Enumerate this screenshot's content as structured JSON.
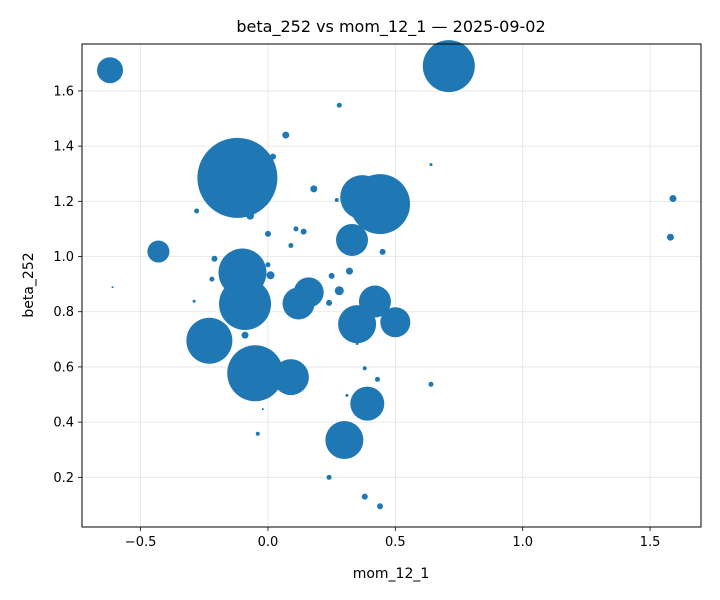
{
  "chart_data": {
    "type": "scatter",
    "title": "beta_252 vs mom_12_1 — 2025-09-02",
    "xlabel": "mom_12_1",
    "ylabel": "beta_252",
    "xlim": [
      -0.73,
      1.7
    ],
    "ylim": [
      0.02,
      1.77
    ],
    "xticks": [
      -0.5,
      0.0,
      0.5,
      1.0,
      1.5
    ],
    "xtick_labels": [
      "−0.5",
      "0.0",
      "0.5",
      "1.0",
      "1.5"
    ],
    "yticks": [
      0.2,
      0.4,
      0.6,
      0.8,
      1.0,
      1.2,
      1.4,
      1.6
    ],
    "ytick_labels": [
      "0.2",
      "0.4",
      "0.6",
      "0.8",
      "1.0",
      "1.2",
      "1.4",
      "1.6"
    ],
    "grid": true,
    "color": "#1f77b4",
    "point_size_encoding": "relative bubble radius",
    "points": [
      {
        "x": -0.62,
        "y": 1.675,
        "size": 13
      },
      {
        "x": 0.71,
        "y": 1.69,
        "size": 26
      },
      {
        "x": 0.28,
        "y": 1.548,
        "size": 2.5
      },
      {
        "x": 0.07,
        "y": 1.44,
        "size": 3.5
      },
      {
        "x": 0.02,
        "y": 1.362,
        "size": 3
      },
      {
        "x": -0.24,
        "y": 1.332,
        "size": 4.5
      },
      {
        "x": -0.12,
        "y": 1.285,
        "size": 40
      },
      {
        "x": 0.37,
        "y": 1.215,
        "size": 22
      },
      {
        "x": 0.44,
        "y": 1.19,
        "size": 30
      },
      {
        "x": 0.18,
        "y": 1.245,
        "size": 3.5
      },
      {
        "x": 0.27,
        "y": 1.205,
        "size": 2
      },
      {
        "x": 0.64,
        "y": 1.333,
        "size": 1.5
      },
      {
        "x": -0.28,
        "y": 1.165,
        "size": 2.5
      },
      {
        "x": -0.07,
        "y": 1.148,
        "size": 4
      },
      {
        "x": 0.11,
        "y": 1.1,
        "size": 2.5
      },
      {
        "x": 0.14,
        "y": 1.09,
        "size": 3
      },
      {
        "x": 0.0,
        "y": 1.082,
        "size": 3
      },
      {
        "x": 0.09,
        "y": 1.04,
        "size": 2.5
      },
      {
        "x": 0.33,
        "y": 1.06,
        "size": 16
      },
      {
        "x": 0.45,
        "y": 1.017,
        "size": 3
      },
      {
        "x": -0.43,
        "y": 1.018,
        "size": 11
      },
      {
        "x": -0.21,
        "y": 0.992,
        "size": 3
      },
      {
        "x": -0.1,
        "y": 0.942,
        "size": 24
      },
      {
        "x": 0.0,
        "y": 0.97,
        "size": 2.5
      },
      {
        "x": 0.01,
        "y": 0.932,
        "size": 4
      },
      {
        "x": -0.22,
        "y": 0.918,
        "size": 2.5
      },
      {
        "x": 0.32,
        "y": 0.947,
        "size": 3.5
      },
      {
        "x": 0.25,
        "y": 0.93,
        "size": 3
      },
      {
        "x": 0.16,
        "y": 0.87,
        "size": 15
      },
      {
        "x": 0.28,
        "y": 0.876,
        "size": 4.5
      },
      {
        "x": -0.61,
        "y": 0.889,
        "size": 1
      },
      {
        "x": -0.29,
        "y": 0.838,
        "size": 1.5
      },
      {
        "x": -0.09,
        "y": 0.828,
        "size": 26
      },
      {
        "x": 0.12,
        "y": 0.83,
        "size": 16
      },
      {
        "x": 0.24,
        "y": 0.832,
        "size": 3
      },
      {
        "x": 0.42,
        "y": 0.837,
        "size": 16
      },
      {
        "x": 0.35,
        "y": 0.755,
        "size": 19
      },
      {
        "x": 0.5,
        "y": 0.762,
        "size": 15
      },
      {
        "x": -0.09,
        "y": 0.715,
        "size": 3.5
      },
      {
        "x": -0.23,
        "y": 0.695,
        "size": 23
      },
      {
        "x": 0.35,
        "y": 0.685,
        "size": 1.5
      },
      {
        "x": -0.05,
        "y": 0.577,
        "size": 28
      },
      {
        "x": 0.09,
        "y": 0.563,
        "size": 18
      },
      {
        "x": 0.38,
        "y": 0.595,
        "size": 2
      },
      {
        "x": 0.43,
        "y": 0.555,
        "size": 2.5
      },
      {
        "x": 0.64,
        "y": 0.537,
        "size": 2.5
      },
      {
        "x": 0.31,
        "y": 0.497,
        "size": 1.5
      },
      {
        "x": 0.39,
        "y": 0.467,
        "size": 17
      },
      {
        "x": -0.02,
        "y": 0.447,
        "size": 1
      },
      {
        "x": -0.04,
        "y": 0.358,
        "size": 2
      },
      {
        "x": 0.3,
        "y": 0.335,
        "size": 19
      },
      {
        "x": 0.24,
        "y": 0.2,
        "size": 2.5
      },
      {
        "x": 0.38,
        "y": 0.13,
        "size": 3
      },
      {
        "x": 0.44,
        "y": 0.095,
        "size": 3
      },
      {
        "x": 1.59,
        "y": 1.21,
        "size": 3.5
      },
      {
        "x": 1.58,
        "y": 1.07,
        "size": 3.5
      }
    ]
  }
}
